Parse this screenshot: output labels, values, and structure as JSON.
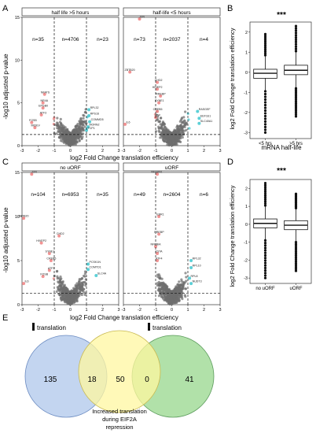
{
  "panels": {
    "A": "A",
    "B": "B",
    "C": "C",
    "D": "D",
    "E": "E"
  },
  "colors": {
    "grey_points": "#6e6e6e",
    "red_points": "#f08080",
    "cyan_points": "#40c8d0",
    "venn_blue": "#bcd0ee",
    "venn_yellow": "#fff7a0",
    "venn_green": "#a8dea0",
    "box_fill": "#ffffff",
    "strip_fill": "#ffffff"
  },
  "chart_data": [
    {
      "type": "scatter",
      "id": "A",
      "xlabel": "log2 Fold Change translation efficiency",
      "ylabel": "-log10 adjusted p-value",
      "facets": [
        {
          "strip": "half life >5 hours",
          "counts": [
            "n=35",
            "n=4706",
            "n=23"
          ],
          "xlim": [
            -3,
            3
          ],
          "x_ticks": [
            "-3",
            "-2",
            "-1",
            "0",
            "1",
            "2",
            "3"
          ],
          "ylim": [
            0,
            15
          ],
          "y_ticks": [
            "0",
            "5",
            "10",
            "15"
          ],
          "gene_labels": [
            {
              "text": "NFATS",
              "x": -1.6,
              "y": 6.0
            },
            {
              "text": "NR4A",
              "x": -1.7,
              "y": 5.0
            },
            {
              "text": "EPGB0",
              "x": -1.7,
              "y": 4.4
            },
            {
              "text": "ATF3",
              "x": -1.8,
              "y": 3.6
            },
            {
              "text": "FOSB",
              "x": -2.4,
              "y": 2.7
            },
            {
              "text": "MIDEV",
              "x": -2.2,
              "y": 2.1
            },
            {
              "text": "RPL32",
              "x": 1.15,
              "y": 4.2
            },
            {
              "text": "RPS16",
              "x": 1.15,
              "y": 3.5
            },
            {
              "text": "COMMD5",
              "x": 1.2,
              "y": 2.8
            },
            {
              "text": "MORN2",
              "x": 1.1,
              "y": 2.2
            },
            {
              "text": "TCP1",
              "x": 1.0,
              "y": 1.8
            }
          ]
        },
        {
          "strip": "half-life <5 hours",
          "counts": [
            "n=73",
            "n=2037",
            "n=4"
          ],
          "xlim": [
            -3,
            3
          ],
          "x_ticks": [
            "-3",
            "-2",
            "-1",
            "0",
            "1",
            "2",
            "3"
          ],
          "ylim": [
            0,
            15
          ],
          "y_ticks": [
            "0",
            "5",
            "10",
            "15"
          ],
          "gene_labels": [
            {
              "text": "JUN",
              "x": -2.0,
              "y": 14.8
            },
            {
              "text": "ZBTB20",
              "x": -2.6,
              "y": 8.6
            },
            {
              "text": "CHD2",
              "x": -0.9,
              "y": 7.4
            },
            {
              "text": "HIVEP2",
              "x": -0.9,
              "y": 6.6
            },
            {
              "text": "RREBP",
              "x": -0.7,
              "y": 5.8
            },
            {
              "text": "SYNE1",
              "x": -0.8,
              "y": 5.0
            },
            {
              "text": "CREB5",
              "x": -0.9,
              "y": 4.0
            },
            {
              "text": "ZNF",
              "x": -1.0,
              "y": 3.3
            },
            {
              "text": "IL6",
              "x": -2.9,
              "y": 2.5
            },
            {
              "text": "RASGEF",
              "x": 1.6,
              "y": 4.0
            },
            {
              "text": "EEF1E1",
              "x": 1.7,
              "y": 3.2
            },
            {
              "text": "SLC40A1",
              "x": 1.7,
              "y": 2.6
            }
          ]
        }
      ]
    },
    {
      "type": "box",
      "id": "B",
      "significance": "***",
      "xlabel": "mRNA half-life",
      "ylabel": "log2 Fold Change translation efficiency",
      "categories": [
        "<5 hrs",
        ">5 hrs"
      ],
      "ylim": [
        -3.3,
        2.5
      ],
      "y_ticks": [
        "-3",
        "-2",
        "-1",
        "0",
        "1",
        "2"
      ],
      "boxes": [
        {
          "q1": -0.3,
          "median": -0.05,
          "q3": 0.15,
          "whisker_lo": -0.95,
          "whisker_hi": 0.85,
          "outlier_lo": -3.0,
          "outlier_hi": 1.9
        },
        {
          "q1": -0.12,
          "median": 0.1,
          "q3": 0.35,
          "whisker_lo": -0.8,
          "whisker_hi": 1.05,
          "outlier_lo": -2.2,
          "outlier_hi": 2.3
        }
      ]
    },
    {
      "type": "scatter",
      "id": "C",
      "xlabel": "log2 Fold Change translation efficiency",
      "ylabel": "-log10 adjusted p-value",
      "facets": [
        {
          "strip": "no uORF",
          "counts": [
            "n=104",
            "n=6953",
            "n=35"
          ],
          "xlim": [
            -3,
            3
          ],
          "x_ticks": [
            "-3",
            "-2",
            "-1",
            "0",
            "1",
            "2",
            "3"
          ],
          "ylim": [
            0,
            15
          ],
          "y_ticks": [
            "0",
            "5",
            "10",
            "15"
          ],
          "gene_labels": [
            {
              "text": "JUN",
              "x": -2.4,
              "y": 14.8
            },
            {
              "text": "ZBTB20",
              "x": -2.9,
              "y": 9.8
            },
            {
              "text": "CHD2",
              "x": -0.7,
              "y": 7.8
            },
            {
              "text": "HIVEP2",
              "x": -1.8,
              "y": 7.0
            },
            {
              "text": "SYNE1",
              "x": -1.3,
              "y": 5.8
            },
            {
              "text": "CREB5",
              "x": -1.2,
              "y": 5.0
            },
            {
              "text": "ATF3",
              "x": -1.3,
              "y": 3.9
            },
            {
              "text": "FOSB",
              "x": -1.7,
              "y": 3.2
            },
            {
              "text": "IL6",
              "x": -2.9,
              "y": 2.4
            },
            {
              "text": "PCSK1N",
              "x": 1.1,
              "y": 4.6
            },
            {
              "text": "COMTD1",
              "x": 1.1,
              "y": 4.0
            },
            {
              "text": "SLC4A",
              "x": 1.6,
              "y": 3.3
            }
          ]
        },
        {
          "strip": "uORF",
          "counts": [
            "n=49",
            "n=2604",
            "n=6"
          ],
          "xlim": [
            -3,
            3
          ],
          "x_ticks": [
            "-3",
            "-2",
            "-1",
            "0",
            "1",
            "2",
            "3"
          ],
          "ylim": [
            0,
            15
          ],
          "y_ticks": [
            "0",
            "5",
            "10",
            "15"
          ],
          "gene_labels": [
            {
              "text": "NFSBN1",
              "x": -0.9,
              "y": 14.8
            },
            {
              "text": "EBR1",
              "x": -0.8,
              "y": 10.0
            },
            {
              "text": "RREBP",
              "x": -0.8,
              "y": 8.0
            },
            {
              "text": "NFKBIA",
              "x": -1.0,
              "y": 6.6
            },
            {
              "text": "TSTA",
              "x": -0.9,
              "y": 5.8
            },
            {
              "text": "ATF4",
              "x": -0.9,
              "y": 5.0
            },
            {
              "text": "RPL32",
              "x": 1.2,
              "y": 5.0
            },
            {
              "text": "RPL10",
              "x": 1.2,
              "y": 4.2
            },
            {
              "text": "RPL8",
              "x": 1.1,
              "y": 3.0
            },
            {
              "text": "NUDT3",
              "x": 1.2,
              "y": 2.4
            }
          ]
        }
      ]
    },
    {
      "type": "box",
      "id": "D",
      "significance": "***",
      "xlabel": "",
      "ylabel": "log2 Fold Change translation efficiency",
      "categories": [
        "no uORF",
        "uORF"
      ],
      "ylim": [
        -3.3,
        2.5
      ],
      "y_ticks": [
        "-3",
        "-2",
        "-1",
        "0",
        "1",
        "2"
      ],
      "boxes": [
        {
          "q1": -0.2,
          "median": 0.05,
          "q3": 0.3,
          "whisker_lo": -0.9,
          "whisker_hi": 1.05,
          "outlier_lo": -3.0,
          "outlier_hi": 2.3
        },
        {
          "q1": -0.3,
          "median": -0.05,
          "q3": 0.2,
          "whisker_lo": -1.0,
          "whisker_hi": 0.9,
          "outlier_lo": -2.6,
          "outlier_hi": 1.7
        }
      ]
    }
  ],
  "venn": {
    "left_title": "translation",
    "right_title": "translation",
    "bottom_caption": [
      "Increased translation",
      "during EIF2A",
      "repression"
    ],
    "numbers": [
      "135",
      "18",
      "50",
      "0",
      "41"
    ]
  }
}
